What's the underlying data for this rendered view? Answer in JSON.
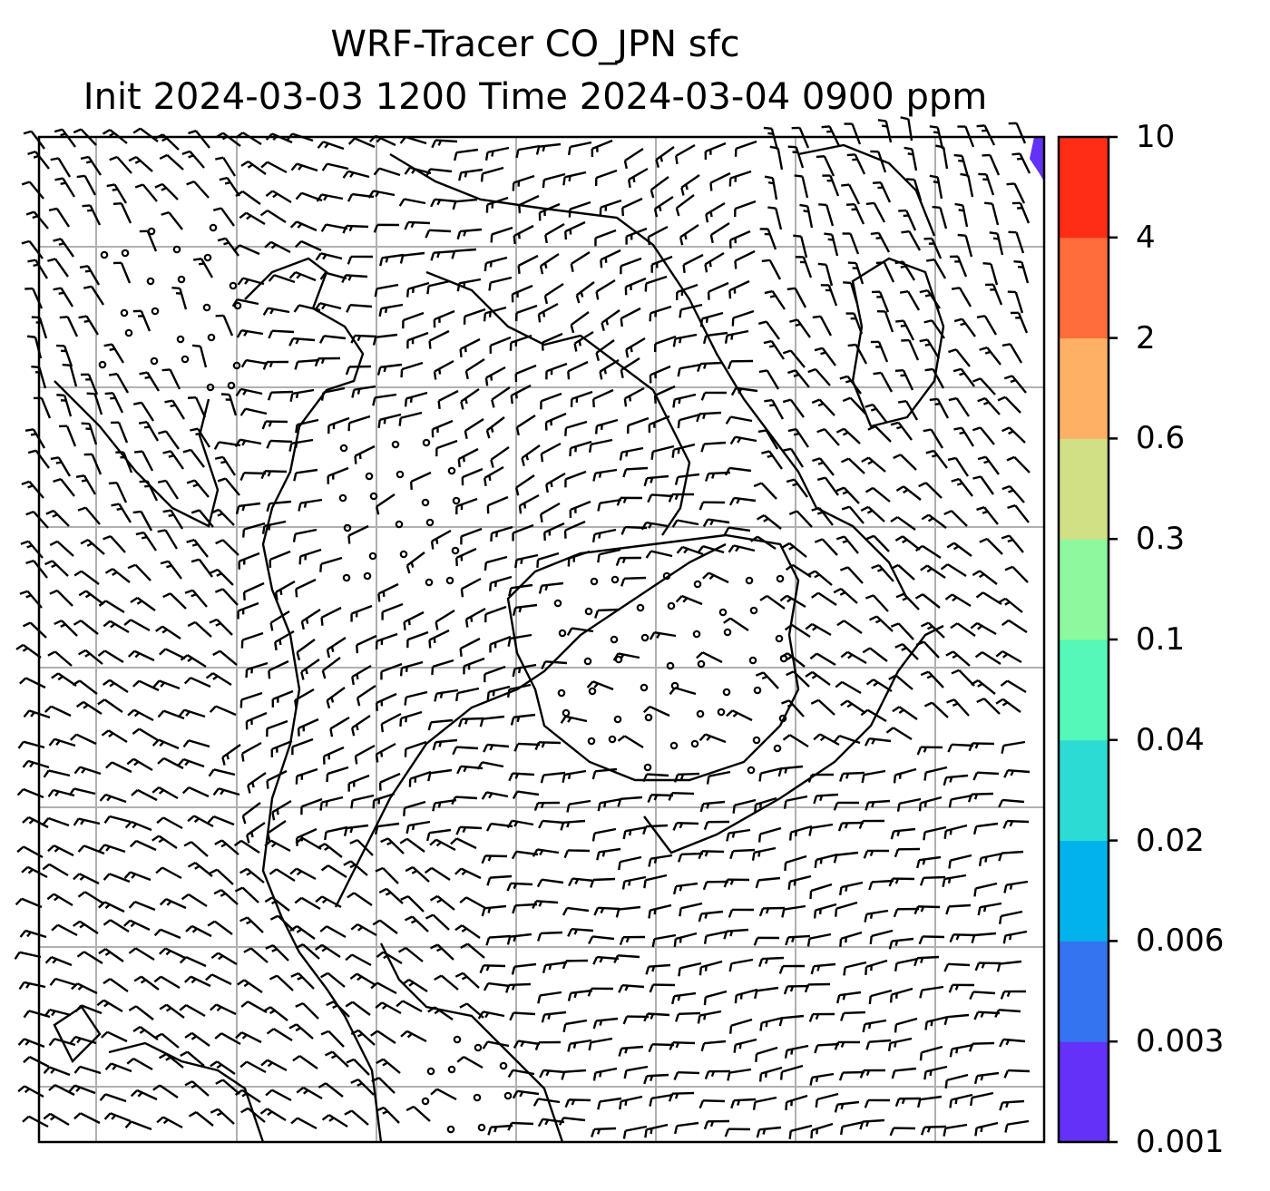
{
  "title": {
    "line1": "WRF-Tracer CO_JPN sfc",
    "line2": "Init 2024-03-03 1200 Time 2024-03-04 0900 ppm"
  },
  "colorbar": {
    "levels": [
      "0.001",
      "0.003",
      "0.006",
      "0.02",
      "0.04",
      "0.1",
      "0.3",
      "0.6",
      "2",
      "4",
      "10"
    ],
    "colors": [
      "#6331f8",
      "#3574f0",
      "#02b2ea",
      "#2cdbd4",
      "#56f8b7",
      "#8df89e",
      "#d1e085",
      "#feb164",
      "#ff6d3a",
      "#ff2d16"
    ]
  },
  "map": {
    "grid_lines": true,
    "wind_barbs": true,
    "coastlines": true,
    "tracer_shading_color": "#6331f8"
  }
}
